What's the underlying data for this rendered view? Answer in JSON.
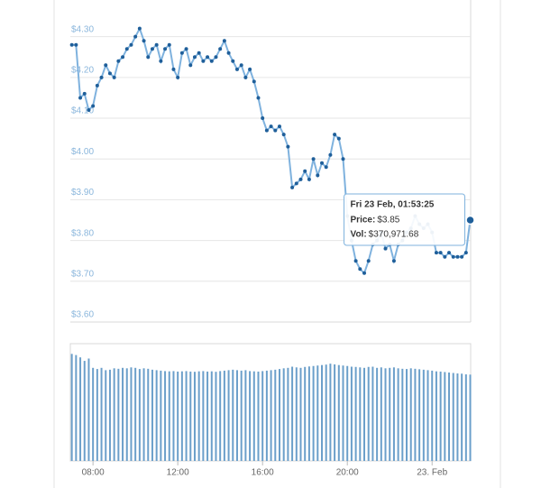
{
  "chart_data": {
    "type": "line",
    "x": [
      7,
      7.2,
      7.4,
      7.6,
      7.8,
      8,
      8.2,
      8.4,
      8.6,
      8.8,
      9,
      9.2,
      9.4,
      9.6,
      9.8,
      10,
      10.2,
      10.4,
      10.6,
      10.8,
      11,
      11.2,
      11.4,
      11.6,
      11.8,
      12,
      12.2,
      12.4,
      12.6,
      12.8,
      13,
      13.2,
      13.4,
      13.6,
      13.8,
      14,
      14.2,
      14.4,
      14.6,
      14.8,
      15,
      15.2,
      15.4,
      15.6,
      15.8,
      16,
      16.2,
      16.4,
      16.6,
      16.8,
      17,
      17.2,
      17.4,
      17.6,
      17.8,
      18,
      18.2,
      18.4,
      18.6,
      18.8,
      19,
      19.2,
      19.4,
      19.6,
      19.8,
      20,
      20.2,
      20.4,
      20.6,
      20.8,
      21,
      21.2,
      21.4,
      21.6,
      21.8,
      22,
      22.2,
      22.4,
      22.6,
      22.8,
      23,
      23.2,
      23.4,
      23.6,
      23.8,
      24,
      24.2,
      24.4,
      24.6,
      24.8,
      25,
      25.2,
      25.4,
      25.6,
      25.8
    ],
    "series": [
      {
        "name": "Price",
        "color": "#7fb2de",
        "marker_color": "#1f5f9a",
        "values": [
          4.28,
          4.28,
          4.15,
          4.16,
          4.12,
          4.13,
          4.18,
          4.2,
          4.23,
          4.21,
          4.2,
          4.24,
          4.25,
          4.27,
          4.28,
          4.3,
          4.32,
          4.29,
          4.25,
          4.27,
          4.28,
          4.24,
          4.27,
          4.28,
          4.22,
          4.2,
          4.26,
          4.27,
          4.23,
          4.25,
          4.26,
          4.24,
          4.25,
          4.24,
          4.25,
          4.27,
          4.29,
          4.26,
          4.24,
          4.22,
          4.23,
          4.2,
          4.22,
          4.19,
          4.15,
          4.1,
          4.07,
          4.08,
          4.07,
          4.08,
          4.06,
          4.03,
          3.93,
          3.94,
          3.95,
          3.97,
          3.95,
          4.0,
          3.96,
          3.99,
          3.98,
          4.01,
          4.06,
          4.05,
          4.0,
          3.86,
          3.8,
          3.75,
          3.73,
          3.72,
          3.75,
          3.79,
          3.8,
          3.82,
          3.78,
          3.79,
          3.75,
          3.79,
          3.8,
          3.82,
          3.83,
          3.86,
          3.84,
          3.83,
          3.84,
          3.82,
          3.77,
          3.77,
          3.76,
          3.77,
          3.76,
          3.76,
          3.76,
          3.77,
          3.85
        ]
      },
      {
        "name": "Vol",
        "type": "bar",
        "axis": "y2",
        "color": "#6b9fca",
        "values": [
          460000,
          455000,
          445000,
          430000,
          440000,
          400000,
          395000,
          400000,
          390000,
          392000,
          398000,
          396000,
          400000,
          398000,
          402000,
          400000,
          395000,
          398000,
          396000,
          392000,
          390000,
          388000,
          386000,
          385000,
          386000,
          384000,
          385000,
          386000,
          384000,
          383000,
          385000,
          386000,
          384000,
          385000,
          383000,
          386000,
          388000,
          390000,
          392000,
          390000,
          388000,
          390000,
          386000,
          385000,
          384000,
          386000,
          388000,
          390000,
          392000,
          395000,
          398000,
          400000,
          405000,
          402000,
          400000,
          404000,
          406000,
          408000,
          410000,
          412000,
          414000,
          418000,
          415000,
          412000,
          410000,
          408000,
          405000,
          404000,
          402000,
          400000,
          404000,
          405000,
          400000,
          402000,
          398000,
          400000,
          402000,
          398000,
          396000,
          395000,
          398000,
          396000,
          394000,
          392000,
          390000,
          388000,
          385000,
          384000,
          382000,
          380000,
          378000,
          376000,
          375000,
          372000,
          370971.68
        ]
      }
    ],
    "xlim": [
      6.93,
      25.82
    ],
    "xticks": [
      {
        "value": 8,
        "label": "08:00"
      },
      {
        "value": 12,
        "label": "12:00"
      },
      {
        "value": 16,
        "label": "16:00"
      },
      {
        "value": 20,
        "label": "20:00"
      },
      {
        "value": 24,
        "label": "23. Feb"
      }
    ],
    "ylim": [
      3.6,
      4.39
    ],
    "yticks": [
      {
        "value": 3.6,
        "label": "$3.60"
      },
      {
        "value": 3.7,
        "label": "$3.70"
      },
      {
        "value": 3.8,
        "label": "$3.80"
      },
      {
        "value": 3.9,
        "label": "$3.90"
      },
      {
        "value": 4.0,
        "label": "$4.00"
      },
      {
        "value": 4.1,
        "label": "$4.10"
      },
      {
        "value": 4.2,
        "label": "$4.20"
      },
      {
        "value": 4.3,
        "label": "$4.30"
      }
    ],
    "y2lim": [
      0,
      500000
    ],
    "grid": true,
    "tooltip": {
      "title": "Fri 23 Feb, 01:53:25",
      "price_label": "Price:",
      "price": "$3.85",
      "vol_label": "Vol:",
      "vol": "$370,971.68"
    }
  }
}
